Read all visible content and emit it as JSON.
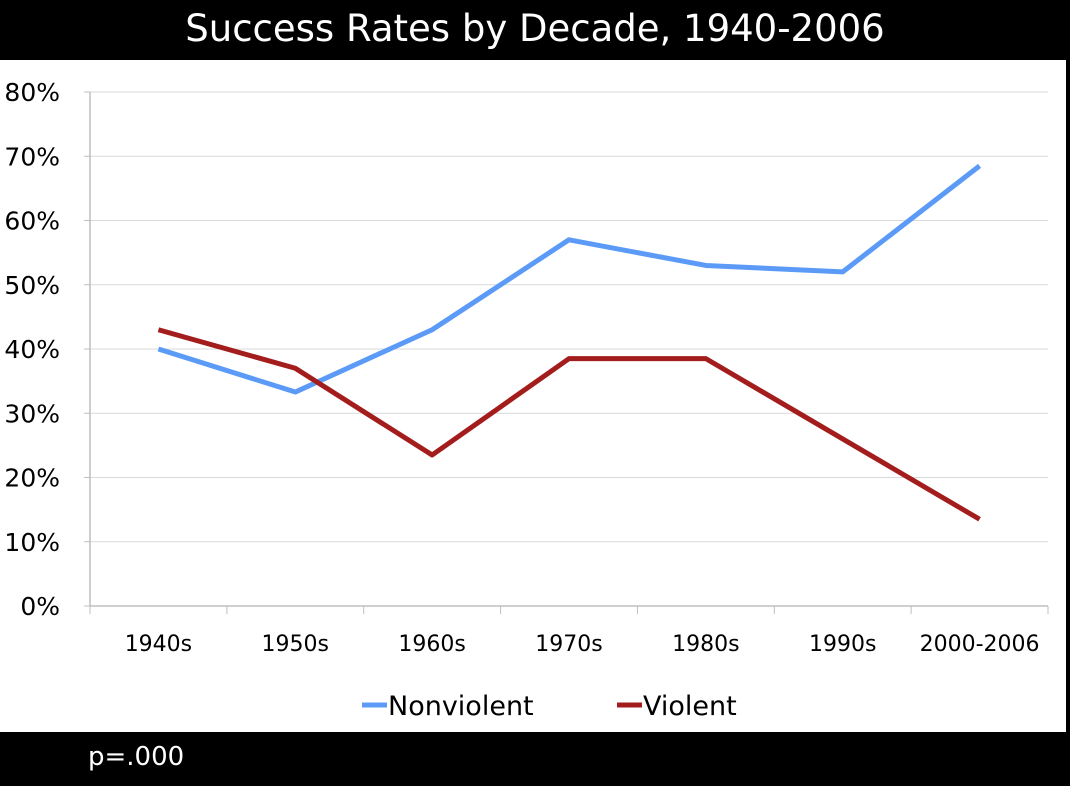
{
  "header": {
    "title": "Success Rates by Decade, 1940-2006"
  },
  "footer": {
    "note": "p=.000"
  },
  "colors": {
    "nonviolent": "#5b9bf7",
    "violent": "#a31d1d",
    "grid": "#d9d9d9",
    "axis": "#bfbfbf"
  },
  "chart_data": {
    "type": "line",
    "title": "Success Rates by Decade, 1940-2006",
    "xlabel": "",
    "ylabel": "",
    "categories": [
      "1940s",
      "1950s",
      "1960s",
      "1970s",
      "1980s",
      "1990s",
      "2000-2006"
    ],
    "ylim": [
      0,
      80
    ],
    "yticks": [
      0,
      10,
      20,
      30,
      40,
      50,
      60,
      70,
      80
    ],
    "ytick_labels": [
      "0%",
      "10%",
      "20%",
      "30%",
      "40%",
      "50%",
      "60%",
      "70%",
      "80%"
    ],
    "grid": true,
    "legend_position": "bottom",
    "series": [
      {
        "name": "Nonviolent",
        "color": "#5b9bf7",
        "values": [
          40,
          33.3,
          43,
          57,
          53,
          52,
          68.5
        ]
      },
      {
        "name": "Violent",
        "color": "#a31d1d",
        "values": [
          43,
          37,
          23.5,
          38.5,
          38.5,
          26,
          13.5
        ]
      }
    ]
  }
}
